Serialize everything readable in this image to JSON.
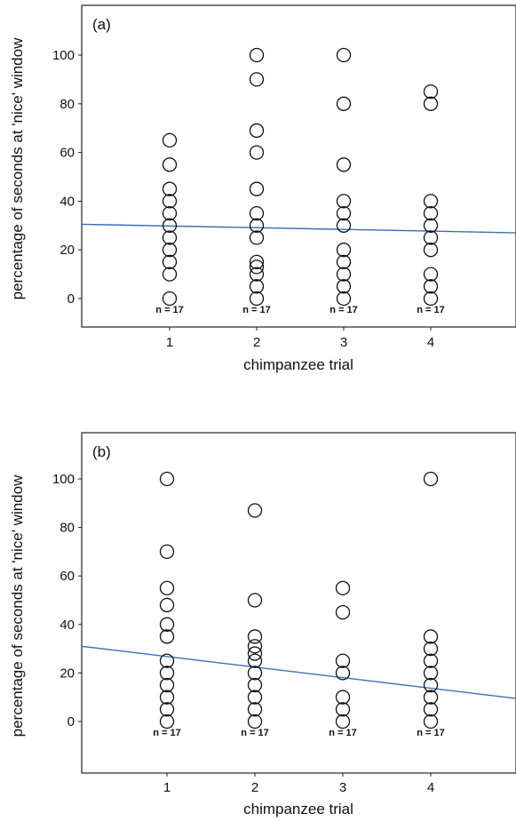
{
  "colors": {
    "fit_line": "#3a6fb3",
    "points": "#111111"
  },
  "chart_data": [
    {
      "type": "scatter",
      "panel_label": "(a)",
      "xlabel": "chimpanzee trial",
      "ylabel": "percentage of seconds at 'nice' window",
      "x_ticks": [
        1,
        2,
        3,
        4
      ],
      "y_ticks": [
        0,
        20,
        40,
        60,
        80,
        100
      ],
      "xlim": [
        0.0,
        4.9
      ],
      "ylim": [
        -20,
        120
      ],
      "n_labels": [
        "n = 17",
        "n = 17",
        "n = 17",
        "n = 17"
      ],
      "points": [
        {
          "x": 1,
          "ys": [
            0,
            10,
            15,
            20,
            25,
            30,
            35,
            40,
            45,
            55,
            65
          ]
        },
        {
          "x": 2,
          "ys": [
            0,
            5,
            10,
            13,
            15,
            25,
            30,
            35,
            45,
            60,
            69,
            90,
            100
          ]
        },
        {
          "x": 3,
          "ys": [
            0,
            5,
            10,
            15,
            20,
            30,
            35,
            40,
            55,
            80,
            100
          ]
        },
        {
          "x": 4,
          "ys": [
            0,
            5,
            10,
            20,
            25,
            30,
            35,
            40,
            80,
            85
          ]
        }
      ],
      "fit_line": {
        "x": [
          0.0,
          4.9
        ],
        "y": [
          30.5,
          27.0
        ]
      }
    },
    {
      "type": "scatter",
      "panel_label": "(b)",
      "xlabel": "chimpanzee trial",
      "ylabel": "percentage of seconds at 'nice' window",
      "x_ticks": [
        1,
        2,
        3,
        4
      ],
      "y_ticks": [
        0,
        20,
        40,
        60,
        80,
        100
      ],
      "xlim": [
        0.0,
        4.9
      ],
      "ylim": [
        -20,
        120
      ],
      "n_labels": [
        "n = 17",
        "n = 17",
        "n = 17",
        "n = 17"
      ],
      "points": [
        {
          "x": 1,
          "ys": [
            0,
            5,
            10,
            15,
            20,
            25,
            35,
            40,
            48,
            55,
            70,
            100
          ]
        },
        {
          "x": 2,
          "ys": [
            0,
            5,
            10,
            15,
            20,
            25,
            28,
            31,
            35,
            50,
            87
          ]
        },
        {
          "x": 3,
          "ys": [
            0,
            5,
            10,
            20,
            25,
            45,
            55
          ]
        },
        {
          "x": 4,
          "ys": [
            0,
            5,
            10,
            15,
            20,
            25,
            30,
            35,
            100
          ]
        }
      ],
      "fit_line": {
        "x": [
          0.0,
          4.9
        ],
        "y": [
          31.0,
          9.5
        ]
      }
    }
  ]
}
